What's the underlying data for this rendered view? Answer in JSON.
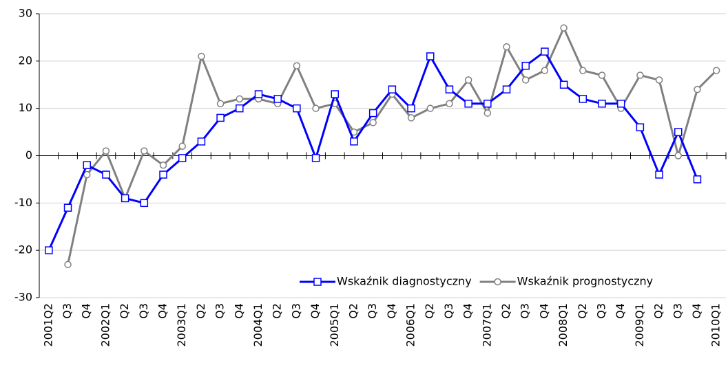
{
  "chart_data": {
    "type": "line",
    "categories": [
      "2001Q2",
      "Q3",
      "Q4",
      "2002Q1",
      "Q2",
      "Q3",
      "Q4",
      "2003Q1",
      "Q2",
      "Q3",
      "Q4",
      "2004Q1",
      "Q2",
      "Q3",
      "Q4",
      "2005Q1",
      "Q2",
      "Q3",
      "Q4",
      "2006Q1",
      "Q2",
      "Q3",
      "Q4",
      "2007Q1",
      "Q2",
      "Q3",
      "Q4",
      "2008Q1",
      "Q2",
      "Q3",
      "Q4",
      "2009Q1",
      "Q2",
      "Q3",
      "Q4",
      "2010Q1"
    ],
    "series": [
      {
        "name": "Wskaźnik diagnostyczny",
        "color": "#0000ff",
        "marker": "square",
        "values": [
          -20,
          -11,
          -2,
          -4,
          -9,
          -10,
          -4,
          -0.5,
          3,
          8,
          10,
          13,
          12,
          10,
          -0.5,
          13,
          3,
          9,
          14,
          10,
          21,
          14,
          11,
          11,
          14,
          19,
          22,
          15,
          12,
          11,
          11,
          6,
          -4,
          5,
          -5,
          null
        ]
      },
      {
        "name": "Wskaźnik prognostyczny",
        "color": "#808080",
        "marker": "circle",
        "values": [
          null,
          -23,
          -4,
          1,
          -9,
          1,
          -2,
          2,
          21,
          11,
          12,
          12,
          11,
          19,
          10,
          11,
          5,
          7,
          13,
          8,
          10,
          11,
          16,
          9,
          23,
          16,
          18,
          27,
          18,
          17,
          10,
          17,
          16,
          0,
          14,
          18
        ]
      }
    ],
    "ylim": [
      -30,
      30
    ],
    "yticks": [
      -30,
      -20,
      -10,
      0,
      10,
      20,
      30
    ],
    "grid": true,
    "legend": "lower right"
  }
}
